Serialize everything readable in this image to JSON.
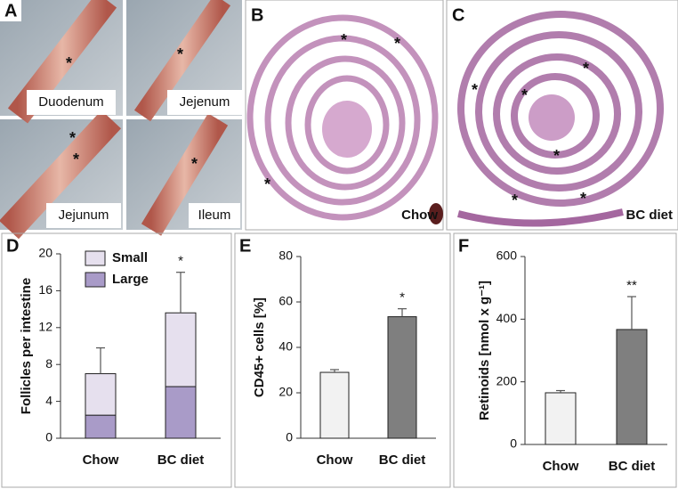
{
  "panel_labels": [
    "A",
    "B",
    "C",
    "D",
    "E",
    "F"
  ],
  "photo_labels": [
    "Duodenum",
    "Jejenum",
    "Jejunum",
    "Ileum"
  ],
  "section_labels": [
    "Chow",
    "BC diet"
  ],
  "asterisk": "*",
  "chart_data": [
    {
      "type": "bar",
      "stacked": true,
      "ylabel": "Follicles per intestine",
      "categories": [
        "Chow",
        "BC diet"
      ],
      "series": [
        {
          "name": "Large",
          "color": "#a99bc8",
          "values": [
            2.5,
            5.6
          ]
        },
        {
          "name": "Small",
          "color": "#e6e0ee",
          "values": [
            4.5,
            8.0
          ],
          "errors": [
            2.8,
            4.4
          ]
        }
      ],
      "significance": [
        null,
        "*"
      ],
      "legend": "top-left",
      "ylim": [
        0,
        20
      ],
      "yticks": [
        0,
        4,
        8,
        12,
        16,
        20
      ]
    },
    {
      "type": "bar",
      "ylabel": "CD45+ cells [%]",
      "categories": [
        "Chow",
        "BC diet"
      ],
      "values": [
        29,
        53.5
      ],
      "errors": [
        1.2,
        3.5
      ],
      "colors": [
        "#f2f2f2",
        "#7f7f7f"
      ],
      "significance": [
        null,
        "*"
      ],
      "ylim": [
        0,
        80
      ],
      "yticks": [
        0,
        20,
        40,
        60,
        80
      ]
    },
    {
      "type": "bar",
      "ylabel": "Retinoids [nmol x g⁻¹]",
      "categories": [
        "Chow",
        "BC diet"
      ],
      "values": [
        165,
        367
      ],
      "errors": [
        7,
        105
      ],
      "colors": [
        "#f2f2f2",
        "#7f7f7f"
      ],
      "significance": [
        null,
        "**"
      ],
      "ylim": [
        0,
        600
      ],
      "yticks": [
        0,
        200,
        400,
        600
      ]
    }
  ]
}
